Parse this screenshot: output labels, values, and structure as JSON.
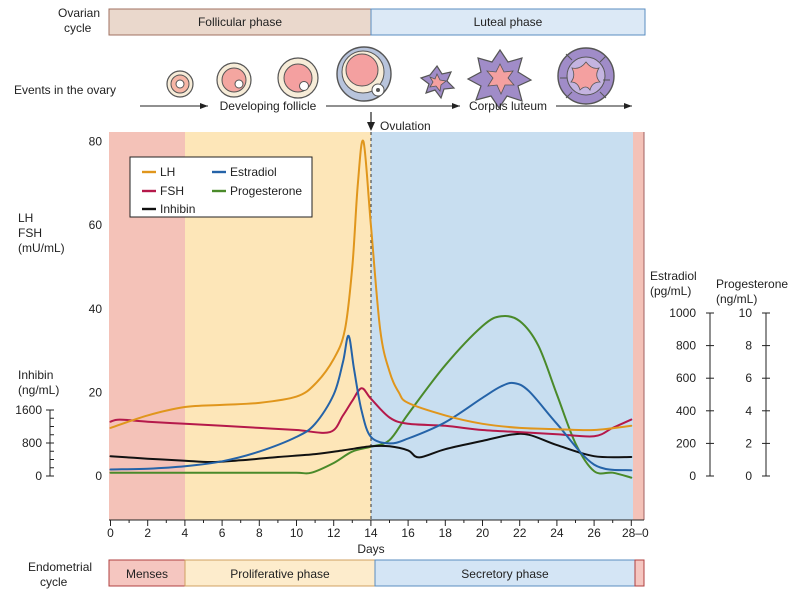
{
  "title_rows": {
    "ovarian_cycle_label": [
      "Ovarian",
      "cycle"
    ],
    "follicular_phase": "Follicular phase",
    "luteal_phase": "Luteal phase",
    "events_label": "Events in the ovary",
    "developing_follicle": "Developing follicle",
    "corpus_luteum": "Corpus luteum",
    "ovulation": "Ovulation",
    "endometrial_cycle_label": [
      "Endometrial",
      "cycle"
    ],
    "menses": "Menses",
    "proliferative_phase": "Proliferative phase",
    "secretory_phase": "Secretory phase"
  },
  "colors": {
    "menses": "#f4c2b8",
    "follicular": "#fde6b8",
    "luteal": "#c8def0",
    "follicular_box": "#ead8cc",
    "luteal_box": "#dce9f6",
    "menses_box": "#f5c6c0",
    "proliferative_box": "#fdeccc",
    "secretory_box": "#d4e5f5",
    "LH": "#e0961c",
    "FSH": "#b5194a",
    "Inhibin": "#111111",
    "Estradiol": "#2563a8",
    "Progesterone": "#4a8a2a"
  },
  "chart_data": {
    "type": "line",
    "xlabel": "Days",
    "x_ticks": [
      "0",
      "2",
      "4",
      "6",
      "8",
      "10",
      "12",
      "14",
      "16",
      "18",
      "20",
      "22",
      "24",
      "26",
      "28–0"
    ],
    "xlim": [
      0,
      28.4
    ],
    "axes": {
      "lh_fsh": {
        "label": [
          "LH",
          "FSH",
          "(mU/mL)"
        ],
        "ticks": [
          "0",
          "20",
          "40",
          "60",
          "80"
        ],
        "range": [
          0,
          80
        ]
      },
      "inhibin": {
        "label": [
          "Inhibin",
          "(ng/mL)"
        ],
        "ticks": [
          "0",
          "800",
          "1600"
        ],
        "range": [
          0,
          1600
        ]
      },
      "estradiol": {
        "label": [
          "Estradiol",
          "(pg/mL)"
        ],
        "ticks": [
          "0",
          "200",
          "400",
          "600",
          "800",
          "1000"
        ],
        "range": [
          0,
          1000
        ]
      },
      "progesterone": {
        "label": [
          "Progesterone",
          "(ng/mL)"
        ],
        "ticks": [
          "0",
          "2",
          "4",
          "6",
          "8",
          "10"
        ],
        "range": [
          0,
          10
        ]
      }
    },
    "series": [
      {
        "name": "LH",
        "axis": "lh_fsh",
        "x": [
          0,
          2,
          4,
          6,
          8,
          10,
          11,
          12,
          12.6,
          13,
          13.3,
          13.6,
          14,
          14.5,
          15,
          15.5,
          16,
          18,
          20,
          22,
          24,
          26,
          28
        ],
        "y": [
          11.5,
          14.5,
          16.5,
          17,
          17.5,
          19,
          22,
          28,
          35,
          50,
          70,
          80,
          60,
          35,
          25,
          20,
          17.5,
          14.5,
          12.5,
          11.5,
          11.2,
          11,
          12
        ]
      },
      {
        "name": "FSH",
        "axis": "lh_fsh",
        "x": [
          0,
          0.5,
          2,
          4,
          6,
          8,
          10,
          11.8,
          12.5,
          13,
          13.5,
          14,
          15,
          16,
          18,
          20,
          22,
          24,
          26,
          27,
          28
        ],
        "y": [
          13,
          13.5,
          13,
          12.5,
          12,
          11.5,
          11,
          10.5,
          14.5,
          18,
          21,
          18.5,
          14,
          12.5,
          12,
          11,
          10.5,
          10,
          9.5,
          11.5,
          13.5
        ]
      },
      {
        "name": "Inhibin",
        "axis": "inhibin",
        "x": [
          0,
          2,
          4,
          5.4,
          7,
          9,
          11,
          12.5,
          14,
          15,
          16,
          16.6,
          18,
          20,
          21.5,
          22.5,
          24,
          26,
          28
        ],
        "y": [
          480,
          420,
          370,
          340,
          380,
          460,
          530,
          620,
          720,
          720,
          620,
          450,
          650,
          850,
          1000,
          1000,
          750,
          480,
          460
        ]
      },
      {
        "name": "Estradiol",
        "axis": "estradiol",
        "x": [
          0,
          2,
          4,
          6,
          8,
          10,
          11,
          12,
          12.5,
          12.8,
          13.1,
          13.5,
          14,
          15,
          16,
          18,
          20,
          21,
          21.7,
          22.5,
          24,
          26,
          28
        ],
        "y": [
          40,
          45,
          60,
          90,
          150,
          240,
          320,
          500,
          700,
          860,
          650,
          400,
          240,
          200,
          230,
          330,
          480,
          550,
          570,
          520,
          320,
          70,
          35
        ]
      },
      {
        "name": "Progesterone",
        "axis": "progesterone",
        "x": [
          0,
          2,
          4,
          6,
          8,
          10,
          10.8,
          12,
          13,
          14,
          15,
          16,
          18,
          20,
          21,
          22,
          23,
          24,
          25,
          26,
          27,
          28
        ],
        "y": [
          0.2,
          0.2,
          0.2,
          0.2,
          0.2,
          0.2,
          0.2,
          0.8,
          1.5,
          1.8,
          2.2,
          3.8,
          6.8,
          9.2,
          9.8,
          9.5,
          8,
          5,
          2,
          0.3,
          0.2,
          -0.1
        ]
      }
    ],
    "legend": [
      "LH",
      "FSH",
      "Inhibin",
      "Estradiol",
      "Progesterone"
    ],
    "legend_position": "top-left"
  }
}
